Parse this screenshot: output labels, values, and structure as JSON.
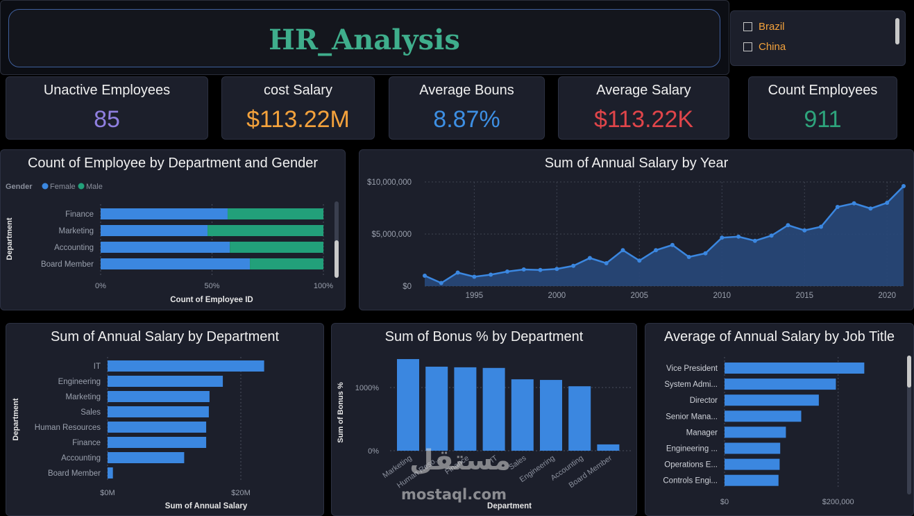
{
  "header": {
    "title": "HR_Analysis"
  },
  "slicer": {
    "items": [
      "Brazil",
      "China"
    ]
  },
  "kpis": {
    "unactive": {
      "label": "Unactive Employees",
      "value": "85",
      "color": "#8f7fe0"
    },
    "cost": {
      "label": "cost Salary",
      "value": "$113.22M",
      "color": "#f4a23c"
    },
    "bonus": {
      "label": "Average Bouns",
      "value": "8.87%",
      "color": "#3d8fe3"
    },
    "avg_salary": {
      "label": "Average Salary",
      "value": "$113.22K",
      "color": "#e0454a"
    },
    "count": {
      "label": "Count Employees",
      "value": "911",
      "color": "#2ea47c"
    }
  },
  "colors": {
    "female": "#3b87e0",
    "male": "#22a07a",
    "bar": "#3b87e0",
    "area": "#28487a"
  },
  "chart_data": [
    {
      "type": "bar",
      "orientation": "horizontal-stacked-100",
      "title": "Count of Employee by Department and Gender",
      "legend_title": "Gender",
      "legend_position": "top-left",
      "xlabel": "Count of Employee ID",
      "ylabel": "Department",
      "categories": [
        "Finance",
        "Marketing",
        "Accounting",
        "Board Member"
      ],
      "series": [
        {
          "name": "Female",
          "values": [
            57,
            48,
            58,
            67
          ]
        },
        {
          "name": "Male",
          "values": [
            43,
            52,
            42,
            33
          ]
        }
      ],
      "xticks": [
        "0%",
        "50%",
        "100%"
      ],
      "xlim": [
        0,
        100
      ]
    },
    {
      "type": "area",
      "title": "Sum of Annual Salary by Year",
      "x": [
        1992,
        1993,
        1994,
        1995,
        1996,
        1997,
        1998,
        1999,
        2000,
        2001,
        2002,
        2003,
        2004,
        2005,
        2006,
        2007,
        2008,
        2009,
        2010,
        2011,
        2012,
        2013,
        2014,
        2015,
        2016,
        2017,
        2018,
        2019,
        2020,
        2021
      ],
      "values": [
        1000000,
        300000,
        1300000,
        900000,
        1100000,
        1400000,
        1600000,
        1550000,
        1650000,
        1950000,
        2700000,
        2200000,
        3450000,
        2450000,
        3450000,
        3950000,
        2800000,
        3150000,
        4650000,
        4750000,
        4350000,
        4850000,
        5850000,
        5350000,
        5700000,
        7600000,
        7950000,
        7450000,
        8000000,
        9600000
      ],
      "xticks": [
        "1995",
        "2000",
        "2005",
        "2010",
        "2015",
        "2020"
      ],
      "yticks": [
        "$0",
        "$5,000,000",
        "$10,000,000"
      ],
      "ylim": [
        0,
        10000000
      ],
      "grid": true
    },
    {
      "type": "bar",
      "orientation": "horizontal",
      "title": "Sum of Annual Salary by Department",
      "xlabel": "Sum of Annual Salary",
      "ylabel": "Department",
      "categories": [
        "IT",
        "Engineering",
        "Marketing",
        "Sales",
        "Human Resources",
        "Finance",
        "Accounting",
        "Board Member"
      ],
      "values": [
        23500000,
        17300000,
        15300000,
        15200000,
        14800000,
        14800000,
        11500000,
        800000
      ],
      "xticks": [
        "$0M",
        "$20M"
      ],
      "xlim": [
        0,
        25000000
      ]
    },
    {
      "type": "bar",
      "title": "Sum of Bonus % by Department",
      "xlabel": "Department",
      "ylabel": "Sum of Bonus %",
      "categories": [
        "Marketing",
        "Human Reso...",
        "Finance",
        "IT",
        "Sales",
        "Engineering",
        "Accounting",
        "Board Member"
      ],
      "values": [
        1450,
        1330,
        1320,
        1310,
        1130,
        1120,
        1020,
        100
      ],
      "yticks": [
        "0%",
        "1000%"
      ],
      "ylim": [
        0,
        1600
      ]
    },
    {
      "type": "bar",
      "orientation": "horizontal",
      "title": "Average of Annual Salary by Job Title",
      "categories": [
        "Vice President",
        "System Admi...",
        "Director",
        "Senior Mana...",
        "Manager",
        "Engineering ...",
        "Operations E...",
        "Controls Engi..."
      ],
      "values": [
        246000,
        196000,
        166000,
        135000,
        108000,
        98000,
        97000,
        95000
      ],
      "xticks": [
        "$0",
        "$200,000"
      ],
      "xlim": [
        0,
        270000
      ]
    }
  ],
  "watermark": {
    "text": "mostaql.com",
    "logo_text": "مستقل"
  }
}
